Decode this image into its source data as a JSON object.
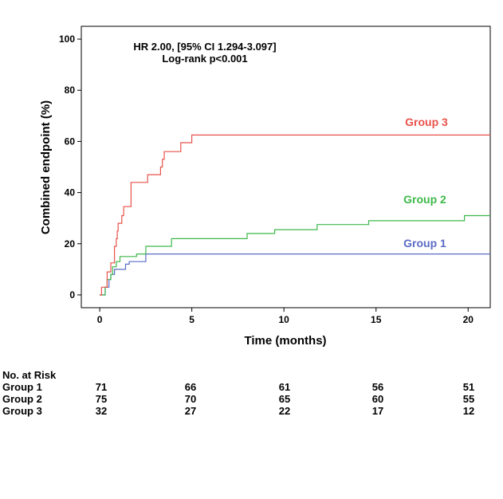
{
  "chart_data": {
    "type": "line",
    "title": "",
    "xlabel": "Time (months)",
    "ylabel": "Combined endpoint (%)",
    "xlim": [
      -1,
      21.2
    ],
    "ylim": [
      -5,
      105
    ],
    "x_ticks": [
      0,
      5,
      10,
      15,
      20
    ],
    "x_tick_labels": [
      "0",
      "5",
      "10",
      "15",
      "20"
    ],
    "y_ticks": [
      0,
      20,
      40,
      60,
      80,
      100
    ],
    "y_tick_labels": [
      "0",
      "20",
      "40",
      "60",
      "80",
      "100"
    ],
    "grid": false,
    "annotations": [
      "HR 2.00, [95% CI 1.294-3.097]",
      "Log-rank p<0.001"
    ],
    "series": [
      {
        "name": "Group 1",
        "color": "#5b6cc5",
        "step_points": [
          [
            0,
            0
          ],
          [
            0.3,
            3
          ],
          [
            0.5,
            6
          ],
          [
            0.6,
            8
          ],
          [
            0.8,
            10
          ],
          [
            1.4,
            12
          ],
          [
            1.6,
            13
          ],
          [
            2.5,
            16
          ],
          [
            21.2,
            16
          ]
        ]
      },
      {
        "name": "Group 2",
        "color": "#3db84a",
        "step_points": [
          [
            0,
            0
          ],
          [
            0.3,
            3
          ],
          [
            0.4,
            6
          ],
          [
            0.6,
            8
          ],
          [
            0.7,
            11
          ],
          [
            0.9,
            13
          ],
          [
            1.1,
            15
          ],
          [
            2.0,
            16
          ],
          [
            2.5,
            19
          ],
          [
            3.9,
            22
          ],
          [
            8.0,
            24
          ],
          [
            9.5,
            25.5
          ],
          [
            11.8,
            27.5
          ],
          [
            14.6,
            29
          ],
          [
            19.8,
            31
          ],
          [
            21.2,
            31
          ]
        ]
      },
      {
        "name": "Group 3",
        "color": "#e8524a",
        "step_points": [
          [
            0,
            0
          ],
          [
            0.1,
            3
          ],
          [
            0.4,
            9
          ],
          [
            0.6,
            12.5
          ],
          [
            0.8,
            19
          ],
          [
            0.9,
            22
          ],
          [
            0.95,
            25
          ],
          [
            1.0,
            28
          ],
          [
            1.2,
            31
          ],
          [
            1.3,
            34.5
          ],
          [
            1.7,
            44
          ],
          [
            2.6,
            47
          ],
          [
            3.3,
            50
          ],
          [
            3.4,
            53
          ],
          [
            3.5,
            56
          ],
          [
            4.4,
            59.5
          ],
          [
            5.0,
            62.5
          ],
          [
            21.2,
            62.5
          ]
        ]
      }
    ]
  },
  "risk_table": {
    "header": "No. at Risk",
    "rows": [
      {
        "label": "Group 1",
        "values": [
          "71",
          "66",
          "61",
          "56",
          "51"
        ]
      },
      {
        "label": "Group 2",
        "values": [
          "75",
          "70",
          "65",
          "60",
          "55"
        ]
      },
      {
        "label": "Group 3",
        "values": [
          "32",
          "27",
          "22",
          "17",
          "12"
        ]
      }
    ]
  }
}
